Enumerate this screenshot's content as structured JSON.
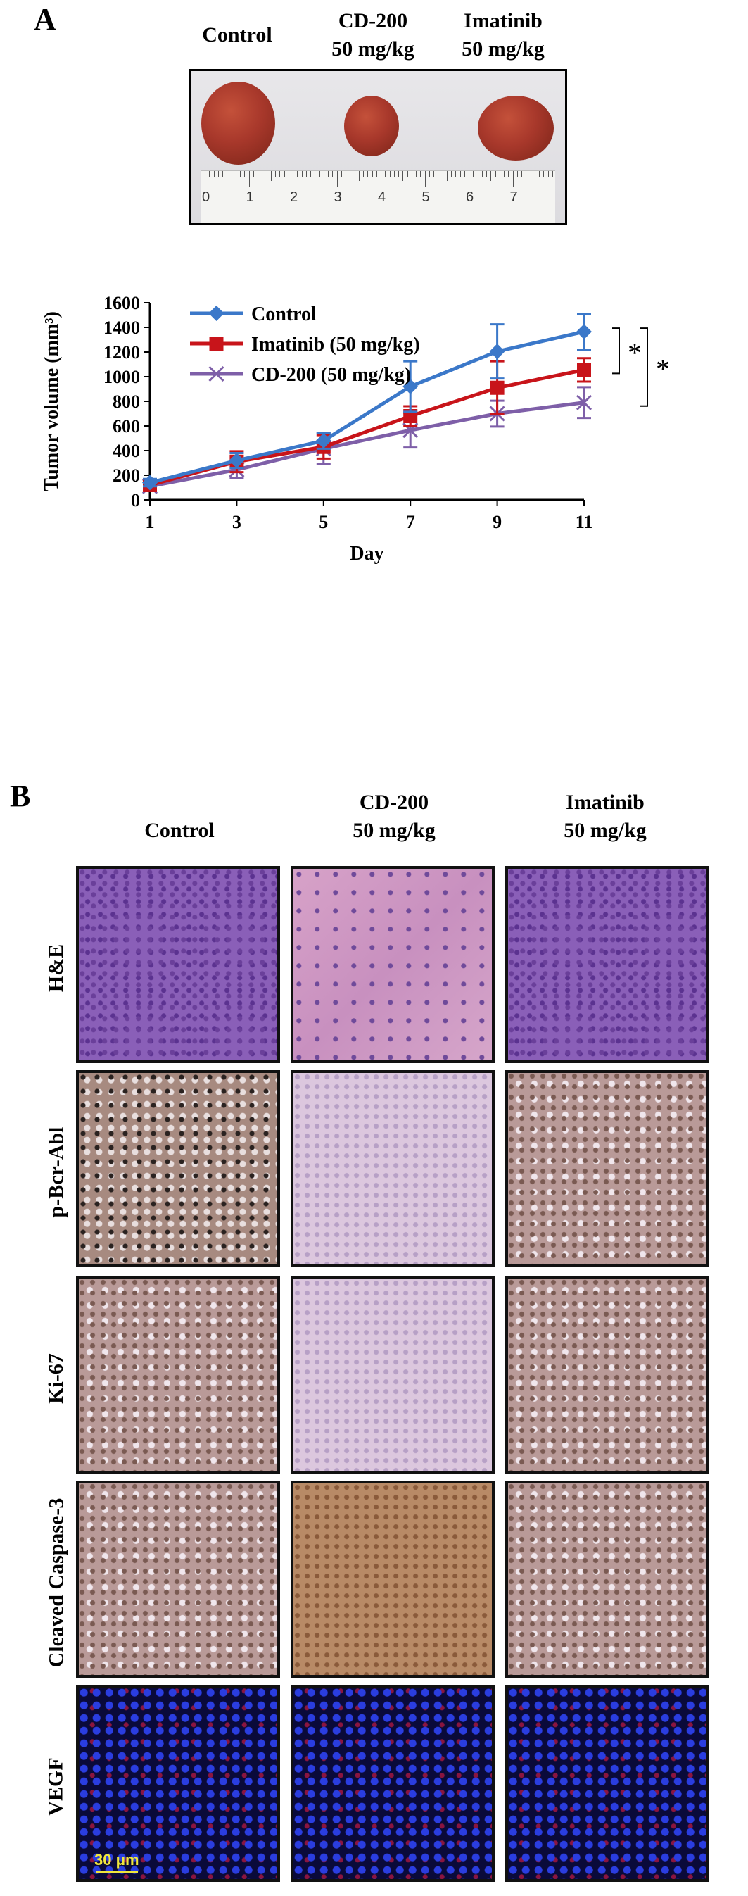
{
  "panel_a": {
    "letter": "A",
    "photo_labels": {
      "control": "Control",
      "cd200_line1": "CD-200",
      "cd200_line2": "50 mg/kg",
      "imatinib_line1": "Imatinib",
      "imatinib_line2": "50 mg/kg"
    },
    "ruler_numbers": [
      "0",
      "1",
      "2",
      "3",
      "4",
      "5",
      "6",
      "7"
    ]
  },
  "chart_data": {
    "type": "line",
    "title": "",
    "xlabel": "Day",
    "ylabel": "Tumor volume (mm³)",
    "x": [
      1,
      3,
      5,
      7,
      9,
      11
    ],
    "xlim": [
      1,
      11
    ],
    "ylim": [
      0,
      1600
    ],
    "yticks": [
      0,
      200,
      400,
      600,
      800,
      1000,
      1200,
      1400,
      1600
    ],
    "grid": false,
    "legend_position": "top-left",
    "series": [
      {
        "name": "Control",
        "color": "#3b78c9",
        "marker": "diamond",
        "values": [
          140,
          320,
          480,
          920,
          1205,
          1365
        ],
        "errors": [
          30,
          60,
          65,
          205,
          220,
          145
        ]
      },
      {
        "name": "Imatinib (50 mg/kg)",
        "color": "#c8141a",
        "marker": "square",
        "values": [
          120,
          310,
          430,
          680,
          910,
          1055
        ],
        "errors": [
          20,
          85,
          95,
          80,
          215,
          95
        ]
      },
      {
        "name": "CD-200 (50 mg/kg)",
        "color": "#7e5fa8",
        "marker": "x",
        "values": [
          110,
          245,
          415,
          565,
          700,
          790
        ],
        "errors": [
          15,
          70,
          125,
          140,
          105,
          125
        ]
      }
    ],
    "significance": [
      {
        "label": "*",
        "between": [
          "Control",
          "Imatinib (50 mg/kg)"
        ]
      },
      {
        "label": "*",
        "between": [
          "Control",
          "CD-200 (50 mg/kg)"
        ]
      }
    ]
  },
  "panel_b": {
    "letter": "B",
    "columns": {
      "control": "Control",
      "cd200_line1": "CD-200",
      "cd200_line2": "50 mg/kg",
      "imatinib_line1": "Imatinib",
      "imatinib_line2": "50 mg/kg"
    },
    "rows": [
      "H&E",
      "p-Bcr-Abl",
      "Ki-67",
      "Cleaved Caspase-3",
      "VEGF"
    ],
    "scale_bar_label": "30 μm"
  }
}
